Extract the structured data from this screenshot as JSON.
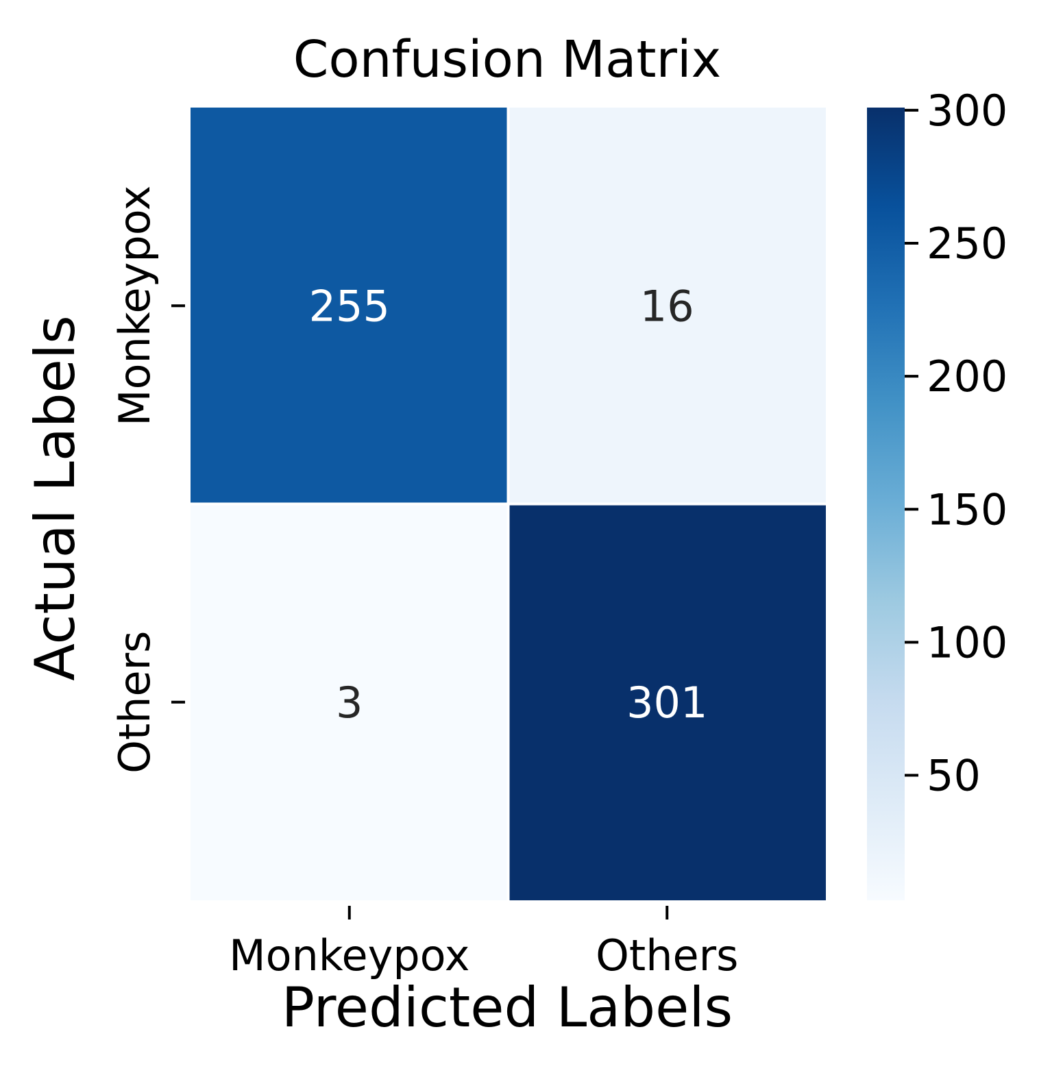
{
  "chart_data": {
    "type": "heatmap",
    "title": "Confusion Matrix",
    "xlabel": "Predicted Labels",
    "ylabel": "Actual Labels",
    "x_categories": [
      "Monkeypox",
      "Others"
    ],
    "y_categories": [
      "Monkeypox",
      "Others"
    ],
    "values": [
      [
        255,
        16
      ],
      [
        3,
        301
      ]
    ],
    "colormap": "Blues",
    "colorbar": {
      "min": 3,
      "max": 301,
      "ticks": [
        50,
        100,
        150,
        200,
        250,
        300
      ]
    },
    "annotation_colors": {
      "light": "#ffffff",
      "dark": "#262626"
    }
  }
}
